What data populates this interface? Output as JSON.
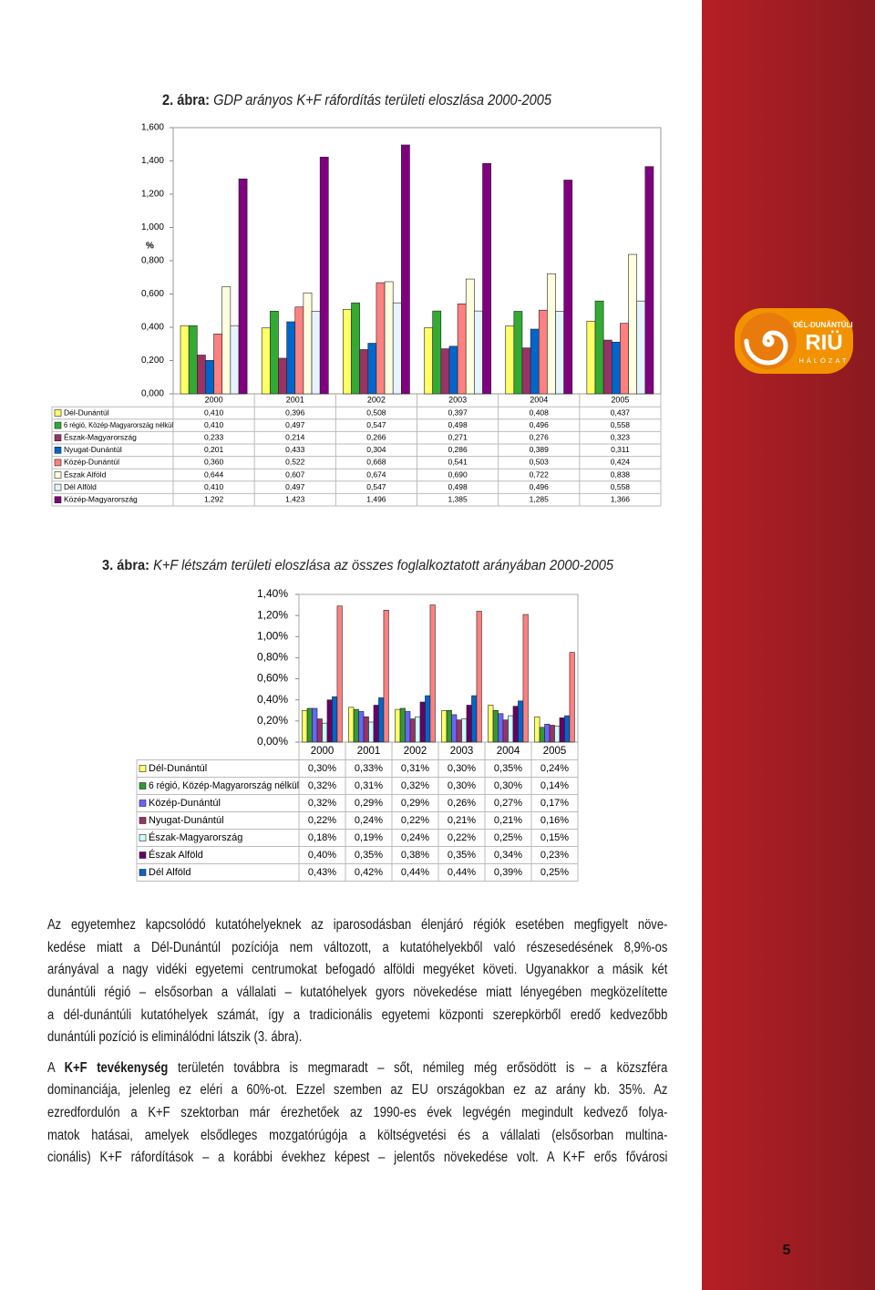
{
  "chart_data": [
    {
      "type": "bar",
      "title_label": "2. ábra:",
      "title": "GDP arányos K+F ráfordítás területi eloszlása 2000-2005",
      "ylabel": "%",
      "categories": [
        "2000",
        "2001",
        "2002",
        "2003",
        "2004",
        "2005"
      ],
      "ylim": [
        0,
        1.6
      ],
      "yticks": [
        {
          "value": 0,
          "label": "0,000"
        },
        {
          "value": 0.2,
          "label": "0,200"
        },
        {
          "value": 0.4,
          "label": "0,400"
        },
        {
          "value": 0.6,
          "label": "0,600"
        },
        {
          "value": 0.8,
          "label": "0,800"
        },
        {
          "value": 1.0,
          "label": "1,000"
        },
        {
          "value": 1.2,
          "label": "1,200"
        },
        {
          "value": 1.4,
          "label": "1,400"
        },
        {
          "value": 1.6,
          "label": "1,600"
        }
      ],
      "grid": false,
      "series": [
        {
          "name": "Dél-Dunántúl",
          "color": "#ffff66",
          "values": [
            0.41,
            0.396,
            0.508,
            0.397,
            0.408,
            0.437
          ],
          "value_labels": [
            "0,410",
            "0,396",
            "0,508",
            "0,397",
            "0,408",
            "0,437"
          ]
        },
        {
          "name": "6 régió, Közép-Magyarország nélkül",
          "color": "#33aa33",
          "values": [
            0.41,
            0.497,
            0.547,
            0.498,
            0.496,
            0.558
          ],
          "value_labels": [
            "0,410",
            "0,497",
            "0,547",
            "0,498",
            "0,496",
            "0,558"
          ]
        },
        {
          "name": "Észak-Magyarország",
          "color": "#993366",
          "values": [
            0.233,
            0.214,
            0.266,
            0.271,
            0.276,
            0.323
          ],
          "value_labels": [
            "0,233",
            "0,214",
            "0,266",
            "0,271",
            "0,276",
            "0,323"
          ]
        },
        {
          "name": "Nyugat-Dunántúl",
          "color": "#0066cc",
          "values": [
            0.201,
            0.433,
            0.304,
            0.286,
            0.389,
            0.311
          ],
          "value_labels": [
            "0,201",
            "0,433",
            "0,304",
            "0,286",
            "0,389",
            "0,311"
          ]
        },
        {
          "name": "Közép-Dunántúl",
          "color": "#ff8080",
          "values": [
            0.36,
            0.522,
            0.668,
            0.541,
            0.503,
            0.424
          ],
          "value_labels": [
            "0,360",
            "0,522",
            "0,668",
            "0,541",
            "0,503",
            "0,424"
          ]
        },
        {
          "name": "Észak Alföld",
          "color": "#ffffe0",
          "values": [
            0.644,
            0.607,
            0.674,
            0.69,
            0.722,
            0.838
          ],
          "value_labels": [
            "0,644",
            "0,607",
            "0,674",
            "0,690",
            "0,722",
            "0,838"
          ]
        },
        {
          "name": "Dél Alföld",
          "color": "#e6f4ff",
          "values": [
            0.41,
            0.497,
            0.547,
            0.498,
            0.496,
            0.558
          ],
          "value_labels": [
            "0,410",
            "0,497",
            "0,547",
            "0,498",
            "0,496",
            "0,558"
          ]
        },
        {
          "name": "Közép-Magyarország",
          "color": "#800080",
          "values": [
            1.292,
            1.423,
            1.496,
            1.385,
            1.285,
            1.366
          ],
          "value_labels": [
            "1,292",
            "1,423",
            "1,496",
            "1,385",
            "1,285",
            "1,366"
          ]
        }
      ]
    },
    {
      "type": "bar",
      "title_label": "3. ábra:",
      "title": "K+F létszám területi eloszlása az összes foglalkoztatott arányában 2000-2005",
      "categories": [
        "2000",
        "2001",
        "2002",
        "2003",
        "2004",
        "2005"
      ],
      "ylim": [
        0,
        1.4
      ],
      "yticks": [
        {
          "value": 0,
          "label": "0,00%"
        },
        {
          "value": 0.2,
          "label": "0,20%"
        },
        {
          "value": 0.4,
          "label": "0,40%"
        },
        {
          "value": 0.6,
          "label": "0,60%"
        },
        {
          "value": 0.8,
          "label": "0,80%"
        },
        {
          "value": 1.0,
          "label": "1,00%"
        },
        {
          "value": 1.2,
          "label": "1,20%"
        },
        {
          "value": 1.4,
          "label": "1,40%"
        }
      ],
      "grid": false,
      "series": [
        {
          "name": "Dél-Dunántúl",
          "color": "#ffff66",
          "values": [
            0.3,
            0.33,
            0.31,
            0.3,
            0.35,
            0.24
          ],
          "value_labels": [
            "0,30%",
            "0,33%",
            "0,31%",
            "0,30%",
            "0,35%",
            "0,24%"
          ]
        },
        {
          "name": "6 régió, Közép-Magyarország nélkül",
          "color": "#339933",
          "values": [
            0.32,
            0.31,
            0.32,
            0.3,
            0.3,
            0.14
          ],
          "value_labels": [
            "0,32%",
            "0,31%",
            "0,32%",
            "0,30%",
            "0,30%",
            "0,14%"
          ]
        },
        {
          "name": "Közép-Dunántúl",
          "color": "#6666ff",
          "values": [
            0.32,
            0.29,
            0.29,
            0.26,
            0.27,
            0.17
          ],
          "value_labels": [
            "0,32%",
            "0,29%",
            "0,29%",
            "0,26%",
            "0,27%",
            "0,17%"
          ]
        },
        {
          "name": "Nyugat-Dunántúl",
          "color": "#993366",
          "values": [
            0.22,
            0.24,
            0.22,
            0.21,
            0.21,
            0.16
          ],
          "value_labels": [
            "0,22%",
            "0,24%",
            "0,22%",
            "0,21%",
            "0,21%",
            "0,16%"
          ]
        },
        {
          "name": "Észak-Magyarország",
          "color": "#ccffff",
          "values": [
            0.18,
            0.19,
            0.24,
            0.22,
            0.25,
            0.15
          ],
          "value_labels": [
            "0,18%",
            "0,19%",
            "0,24%",
            "0,22%",
            "0,25%",
            "0,15%"
          ]
        },
        {
          "name": "Észak Alföld",
          "color": "#660066",
          "values": [
            0.4,
            0.35,
            0.38,
            0.35,
            0.34,
            0.23
          ],
          "value_labels": [
            "0,40%",
            "0,35%",
            "0,38%",
            "0,35%",
            "0,34%",
            "0,23%"
          ]
        },
        {
          "name": "Dél Alföld",
          "color": "#0066cc",
          "values": [
            0.43,
            0.42,
            0.44,
            0.44,
            0.39,
            0.25
          ],
          "value_labels": [
            "0,43%",
            "0,42%",
            "0,44%",
            "0,44%",
            "0,39%",
            "0,25%"
          ]
        },
        {
          "color": "#ff8080",
          "values": [
            1.29,
            1.25,
            1.3,
            1.24,
            1.21,
            0.85
          ]
        }
      ]
    }
  ],
  "paragraphs": [
    {
      "lines": [
        "Az egyetemhez kapcsolódó kutatóhelyeknek az iparosodásban élenjáró régiók esetében megfigyelt növe-",
        "kedése miatt a Dél-Dunántúl pozíciója nem változott, a kutatóhelyekből való részesedésének 8,9%-os",
        "arányával a nagy vidéki egyetemi centrumokat befogadó alföldi megyéket követi. Ugyanakkor a másik két",
        "dunántúli régió – elsősorban a vállalati – kutatóhelyek gyors növekedése miatt lényegében megközelítette",
        "a dél-dunántúli kutatóhelyek számát, így a tradicionális egyetemi központi szerepkörből eredő kedvezőbb",
        "dunántúli pozíció is eliminálódni látszik (3. ábra)."
      ]
    },
    {
      "first_line": {
        "before": "A ",
        "bold": "K+F tevékenység",
        "after": " területén továbbra is megmaradt – sőt, némileg még erősödött is – a közszféra"
      },
      "lines": [
        "dominanciája, jelenleg ez eléri a 60%-ot. Ezzel szemben az EU országokban ez az arány kb. 35%. Az",
        "ezredfordulón a K+F szektorban már érezhetőek az 1990-es évek legvégén megindult kedvező folya-",
        "matok hatásai, amelyek elsődleges mozgatórúgója a költségvetési és a vállalati (elsősorban multina-",
        "cionális) K+F ráfordítások – a korábbi évekhez képest – jelentős növekedése volt. A K+F erős fővárosi"
      ]
    }
  ],
  "logo": {
    "top": "DÉL-DUNÁNTÚLI",
    "main": "RIÜ",
    "bottom": "HÁLÓZAT"
  },
  "page_number": "5"
}
